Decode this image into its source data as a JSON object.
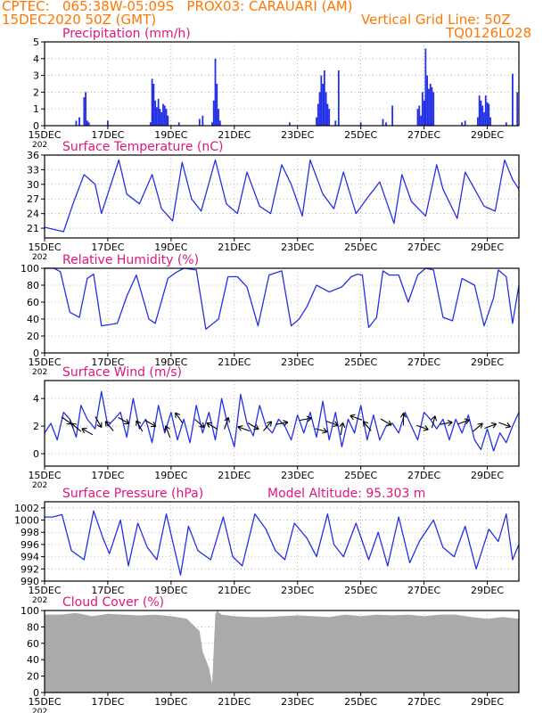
{
  "header": {
    "line1_left": "CPTEC:   065:38W-05:09S   PROX03: CARAUARI (AM)",
    "line2_left": "15DEC2020 50Z (GMT)",
    "line2_right": "Vertical Grid Line: 50Z",
    "line3_right": "TQ0126L028",
    "color": "#ff7700"
  },
  "colors": {
    "title": "#e0157d",
    "series": "#2430e6",
    "cloud": "#aaaaaa",
    "axis": "#000000"
  },
  "x_axis": {
    "ticks": [
      "15DEC",
      "17DEC",
      "19DEC",
      "21DEC",
      "23DEC",
      "25DEC",
      "27DEC",
      "29DEC"
    ],
    "tick_positions_days": [
      0,
      2,
      4,
      6,
      8,
      10,
      12,
      14
    ],
    "range_days": [
      0,
      15
    ],
    "year_label": "202"
  },
  "chart_data": [
    {
      "type": "bar",
      "title": "Precipitation (mm/h)",
      "ylim": [
        0,
        5
      ],
      "yticks": [
        "0",
        "1",
        "2",
        "3",
        "4",
        "5"
      ],
      "x_days": [
        1.0,
        1.1,
        1.25,
        1.3,
        1.35,
        1.4,
        2.0,
        3.35,
        3.4,
        3.45,
        3.5,
        3.55,
        3.6,
        3.65,
        3.7,
        3.75,
        3.8,
        3.85,
        3.9,
        4.25,
        4.9,
        5.0,
        5.3,
        5.35,
        5.4,
        5.45,
        5.5,
        5.55,
        7.75,
        8.6,
        8.65,
        8.7,
        8.75,
        8.8,
        8.85,
        8.9,
        8.95,
        9.0,
        9.2,
        9.3,
        10.0,
        10.7,
        10.8,
        11.0,
        11.8,
        11.85,
        11.9,
        11.95,
        12.0,
        12.05,
        12.1,
        12.15,
        12.2,
        12.25,
        12.3,
        13.2,
        13.3,
        13.7,
        13.75,
        13.8,
        13.85,
        13.9,
        13.95,
        14.0,
        14.05,
        14.1,
        14.6,
        14.8,
        14.95
      ],
      "values": [
        0.3,
        0.5,
        1.7,
        2.0,
        0.3,
        0.2,
        0.3,
        0.2,
        2.8,
        2.5,
        1.5,
        1.1,
        1.6,
        1.0,
        0.8,
        1.3,
        1.2,
        1.0,
        0.6,
        0.2,
        0.4,
        0.6,
        0.2,
        1.5,
        4.0,
        2.5,
        1.0,
        0.3,
        0.2,
        0.5,
        1.3,
        2.0,
        3.0,
        2.5,
        3.3,
        2.0,
        1.3,
        1.0,
        0.3,
        3.3,
        0.2,
        0.4,
        0.2,
        1.2,
        1.0,
        1.2,
        0.6,
        2.0,
        1.5,
        4.6,
        3.0,
        2.2,
        2.5,
        2.3,
        2.0,
        0.2,
        0.3,
        0.5,
        1.8,
        1.5,
        1.2,
        0.8,
        1.8,
        1.4,
        1.3,
        0.5,
        0.2,
        3.1,
        2.0
      ]
    },
    {
      "type": "line",
      "title": "Surface Temperature (nC)",
      "ylim": [
        19,
        36
      ],
      "yticks": [
        "21",
        "24",
        "27",
        "30",
        "33",
        "36"
      ],
      "x_days": [
        0,
        0.6,
        0.9,
        1.25,
        1.6,
        1.8,
        2.35,
        2.6,
        3.0,
        3.4,
        3.7,
        4.05,
        4.35,
        4.65,
        4.95,
        5.4,
        5.75,
        6.1,
        6.4,
        6.8,
        7.15,
        7.5,
        7.8,
        8.15,
        8.4,
        8.8,
        9.15,
        9.45,
        9.85,
        10.3,
        10.6,
        11.05,
        11.3,
        11.6,
        12.05,
        12.4,
        12.6,
        13.05,
        13.3,
        13.9,
        14.25,
        14.55,
        14.8,
        15.0
      ],
      "values": [
        21.2,
        20.3,
        26,
        32,
        30,
        24,
        35,
        28,
        26,
        32,
        25,
        22.5,
        34.5,
        27,
        24.5,
        35,
        26,
        24,
        32.5,
        25.5,
        24,
        34,
        30,
        23.5,
        35,
        28,
        25,
        32.5,
        24,
        28,
        30.5,
        22,
        32,
        26.5,
        23.5,
        34,
        29,
        23,
        32.5,
        25.5,
        24.5,
        35,
        31,
        29
      ]
    },
    {
      "type": "line",
      "title": "Relative Humidity (%)",
      "ylim": [
        0,
        100
      ],
      "yticks": [
        "0",
        "20",
        "40",
        "60",
        "80",
        "100"
      ],
      "x_days": [
        0,
        0.3,
        0.5,
        0.8,
        1.1,
        1.35,
        1.55,
        1.8,
        2.3,
        2.6,
        2.9,
        3.3,
        3.5,
        3.9,
        4.15,
        4.4,
        4.8,
        5.1,
        5.5,
        5.8,
        6.1,
        6.4,
        6.75,
        7.1,
        7.5,
        7.8,
        8.05,
        8.3,
        8.6,
        9.0,
        9.4,
        9.7,
        9.9,
        10.05,
        10.25,
        10.5,
        10.7,
        10.9,
        11.2,
        11.5,
        11.8,
        12.05,
        12.3,
        12.6,
        12.9,
        13.2,
        13.6,
        13.9,
        14.2,
        14.35,
        14.6,
        14.8,
        15.0
      ],
      "values": [
        100,
        100,
        96,
        48,
        42,
        88,
        93,
        32,
        35,
        67,
        92,
        40,
        35,
        88,
        95,
        100,
        98,
        28,
        40,
        90,
        90,
        78,
        32,
        92,
        97,
        32,
        40,
        55,
        80,
        72,
        78,
        90,
        93,
        92,
        30,
        42,
        97,
        92,
        92,
        60,
        92,
        100,
        98,
        42,
        38,
        88,
        80,
        32,
        65,
        98,
        90,
        35,
        80
      ]
    },
    {
      "type": "line",
      "title": "Surface Wind (m/s)",
      "ylim": [
        -0.9,
        5.3
      ],
      "yticks": [
        "0",
        "2",
        "4"
      ],
      "x_days": [
        0,
        0.2,
        0.4,
        0.6,
        0.8,
        1.0,
        1.15,
        1.35,
        1.6,
        1.8,
        2.0,
        2.2,
        2.4,
        2.6,
        2.8,
        3.0,
        3.2,
        3.4,
        3.6,
        3.8,
        4.0,
        4.2,
        4.4,
        4.6,
        4.8,
        5.0,
        5.2,
        5.4,
        5.6,
        5.8,
        6.0,
        6.2,
        6.4,
        6.6,
        6.8,
        7.0,
        7.2,
        7.4,
        7.6,
        7.8,
        8.0,
        8.2,
        8.4,
        8.6,
        8.8,
        9.0,
        9.2,
        9.4,
        9.6,
        9.8,
        10.0,
        10.2,
        10.4,
        10.6,
        10.8,
        11.0,
        11.2,
        11.4,
        11.6,
        11.8,
        12.0,
        12.2,
        12.4,
        12.6,
        12.8,
        13.0,
        13.2,
        13.4,
        13.6,
        13.8,
        14.0,
        14.2,
        14.4,
        14.6,
        14.8,
        15.0
      ],
      "values": [
        1.5,
        2.2,
        1.0,
        3.0,
        2.5,
        1.2,
        3.5,
        2.5,
        1.8,
        4.5,
        2.0,
        2.5,
        3.0,
        1.2,
        4.0,
        1.8,
        2.5,
        0.8,
        3.5,
        1.5,
        3.0,
        1.0,
        2.5,
        0.8,
        3.5,
        1.5,
        3.0,
        1.0,
        4.0,
        2.0,
        0.5,
        4.3,
        2.2,
        1.3,
        3.5,
        2.0,
        1.5,
        2.5,
        2.0,
        1.0,
        2.8,
        1.5,
        3.0,
        1.2,
        3.8,
        1.0,
        3.0,
        0.5,
        2.5,
        1.5,
        3.5,
        1.0,
        2.8,
        1.0,
        2.0,
        2.2,
        1.5,
        3.0,
        2.0,
        1.0,
        3.0,
        2.5,
        1.8,
        2.5,
        1.0,
        2.5,
        1.5,
        2.8,
        1.0,
        0.3,
        1.8,
        0.2,
        1.5,
        0.8,
        2.0,
        3.0
      ],
      "arrows": {
        "x_days": [
          0.7,
          1.0,
          1.35,
          1.7,
          2.05,
          2.5,
          3.0,
          3.35,
          3.9,
          4.25,
          4.9,
          5.3,
          5.75,
          6.3,
          6.6,
          7.05,
          7.5,
          8.25,
          8.75,
          9.1,
          9.4,
          9.85,
          10.2,
          10.8,
          11.35,
          11.95,
          12.3,
          12.7,
          13.25,
          13.7,
          14.1,
          14.55
        ],
        "y_values": [
          2.4,
          1.9,
          1.6,
          2.3,
          2.0,
          2.4,
          2.0,
          2.2,
          1.6,
          2.6,
          2.2,
          2.0,
          2.2,
          1.8,
          2.0,
          2.0,
          2.2,
          2.5,
          1.7,
          2.2,
          1.8,
          2.6,
          2.0,
          2.3,
          2.5,
          1.9,
          2.3,
          2.2,
          2.3,
          1.9,
          2.0,
          2.1
        ],
        "angles_deg": [
          35,
          -140,
          -150,
          60,
          -130,
          30,
          -120,
          30,
          -110,
          -125,
          40,
          -150,
          -70,
          -160,
          30,
          -50,
          -10,
          -10,
          15,
          20,
          -80,
          -160,
          -130,
          30,
          -90,
          20,
          -75,
          -10,
          -20,
          -40,
          -20,
          20
        ]
      }
    },
    {
      "type": "line",
      "title": "Surface Pressure (hPa)",
      "annotation": "Model Altitude: 95.303 m",
      "ylim": [
        990,
        1003
      ],
      "yticks": [
        "990",
        "992",
        "994",
        "996",
        "998",
        "1000",
        "1002"
      ],
      "x_days": [
        0,
        0.25,
        0.55,
        0.85,
        1.25,
        1.55,
        1.85,
        2.05,
        2.4,
        2.65,
        2.95,
        3.25,
        3.55,
        3.85,
        4.3,
        4.55,
        4.85,
        5.25,
        5.65,
        5.95,
        6.25,
        6.65,
        7.0,
        7.3,
        7.6,
        7.9,
        8.3,
        8.6,
        8.95,
        9.15,
        9.45,
        9.85,
        10.25,
        10.55,
        10.85,
        11.2,
        11.55,
        11.85,
        12.3,
        12.6,
        12.95,
        13.3,
        13.65,
        14.05,
        14.35,
        14.6,
        14.8,
        15.0
      ],
      "values": [
        1000.5,
        1000.5,
        1000.9,
        995,
        993.5,
        1001.5,
        997,
        994.5,
        1000,
        992.5,
        999.5,
        995.5,
        993.5,
        1001,
        991,
        999,
        995,
        993.5,
        1000.5,
        994,
        992.5,
        1001,
        998.5,
        995,
        993.5,
        999.5,
        997,
        994,
        1001,
        996,
        994,
        999.5,
        993.5,
        998,
        992.5,
        1000.5,
        993,
        996.5,
        1000,
        995.5,
        994,
        999,
        992,
        998.5,
        996.5,
        1001,
        993.5,
        996
      ]
    },
    {
      "type": "area",
      "title": "Cloud Cover (%)",
      "ylim": [
        0,
        100
      ],
      "yticks": [
        "0",
        "20",
        "40",
        "60",
        "80",
        "100"
      ],
      "x_days": [
        0,
        0.5,
        1.0,
        1.5,
        2.0,
        2.5,
        3.0,
        3.5,
        4.0,
        4.5,
        4.9,
        5.0,
        5.2,
        5.3,
        5.4,
        5.45,
        5.6,
        6.0,
        6.5,
        7.0,
        7.5,
        8.0,
        8.5,
        9.0,
        9.5,
        10.0,
        10.5,
        11.0,
        11.5,
        12.0,
        12.5,
        13.0,
        13.5,
        14.0,
        14.5,
        15.0
      ],
      "values": [
        95,
        95,
        97,
        93,
        96,
        95,
        94,
        95,
        93,
        90,
        75,
        50,
        30,
        10,
        95,
        100,
        95,
        93,
        92,
        92,
        93,
        94,
        93,
        92,
        95,
        93,
        95,
        94,
        95,
        93,
        95,
        95,
        92,
        90,
        92,
        90
      ]
    }
  ]
}
